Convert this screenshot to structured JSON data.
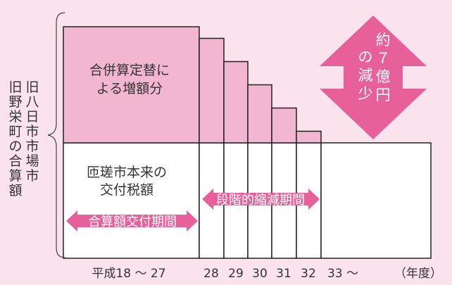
{
  "colors": {
    "background": "#fbe3ee",
    "merged_portion": "#f3b6d1",
    "base_portion": "#ffffff",
    "arrow_pink": "#e8609a",
    "border": "#222222",
    "text": "#333333"
  },
  "side_label": [
    "旧八日市市場市",
    "旧野栄町の合算額"
  ],
  "arrow_label": {
    "lines": [
      "約",
      "７",
      "億円",
      "の減少"
    ]
  },
  "chart_data": {
    "type": "bar",
    "categories": [
      "平成18 ～ 27",
      "28",
      "29",
      "30",
      "31",
      "32",
      "33 ～"
    ],
    "x_unit": "（年度）",
    "series": [
      {
        "name": "",
        "label_lines": [
          "合併算定替に",
          "よる増額分"
        ],
        "values": [
          1.0,
          0.9,
          0.7,
          0.5,
          0.3,
          0.1,
          0.0
        ]
      },
      {
        "name": "",
        "label_lines": [
          "匝瑳市本来の",
          "交付税額"
        ],
        "values": [
          1,
          1,
          1,
          1,
          1,
          1,
          1
        ]
      }
    ],
    "periods": [
      {
        "label": "合算額交付期間",
        "categories": [
          "平成18 ～ 27"
        ]
      },
      {
        "label": "段階的縮減期間",
        "categories": [
          "28",
          "29",
          "30",
          "31",
          "32"
        ]
      }
    ],
    "reduction": "約７億円の減少"
  }
}
